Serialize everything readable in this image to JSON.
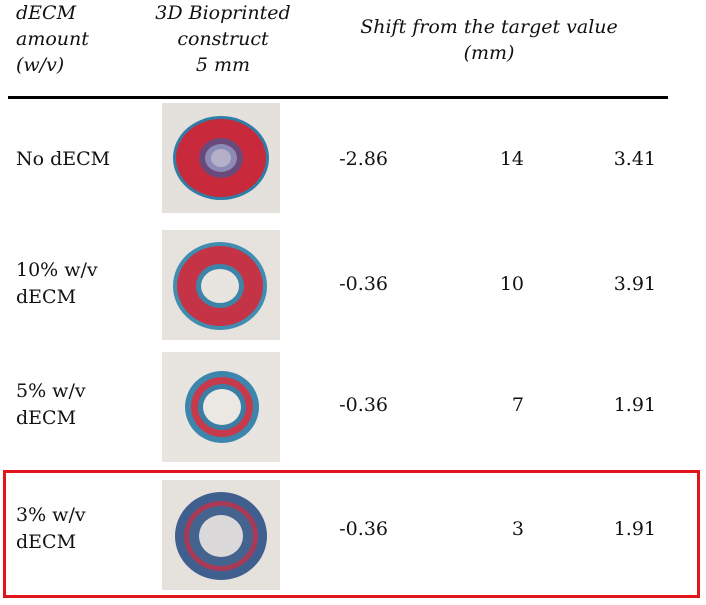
{
  "header": {
    "col1": [
      "dECM",
      "amount",
      "(w/v)"
    ],
    "col2": [
      "3D Bioprinted",
      "construct",
      "5 mm"
    ],
    "col3": [
      "Shift from the target value",
      "(mm)"
    ]
  },
  "rows": [
    {
      "label": [
        "No dECM"
      ],
      "v1": "-2.86",
      "v2": "14",
      "v3": "3.41"
    },
    {
      "label": [
        "10% w/v",
        "dECM"
      ],
      "v1": "-0.36",
      "v2": "10",
      "v3": "3.91"
    },
    {
      "label": [
        "5% w/v",
        "dECM"
      ],
      "v1": "-0.36",
      "v2": "7",
      "v3": "1.91"
    },
    {
      "label": [
        "3% w/v",
        "dECM"
      ],
      "v1": "-0.36",
      "v2": "3",
      "v3": "1.91"
    }
  ],
  "highlighted_row": 3,
  "colors": {
    "highlight": "#e0161b",
    "ring_red": "#c8283a",
    "ring_blue": "#3a7fa8"
  }
}
